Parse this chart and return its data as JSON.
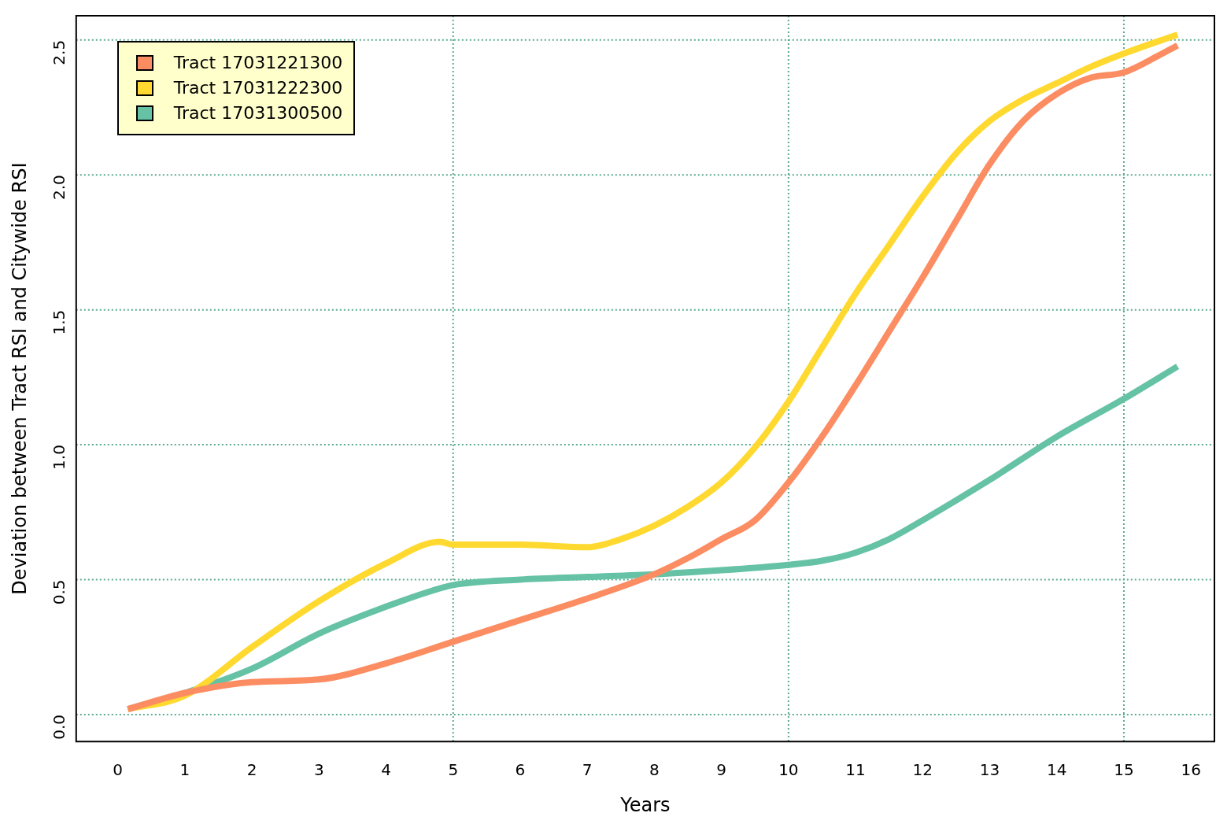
{
  "chart_data": {
    "type": "line",
    "xlabel": "Years",
    "ylabel": "Deviation between Tract RSI and Citywide RSI",
    "xlim": [
      -0.62,
      16.35
    ],
    "ylim": [
      -0.1,
      2.59
    ],
    "xticks": [
      0,
      1,
      2,
      3,
      4,
      5,
      6,
      7,
      8,
      9,
      10,
      11,
      12,
      13,
      14,
      15,
      16
    ],
    "yticks": [
      {
        "value": 0,
        "label": "0.0"
      },
      0.5,
      {
        "value": 1,
        "label": "1.0"
      },
      1.5,
      {
        "value": 2,
        "label": "2.0"
      },
      2.5
    ],
    "grid": true,
    "legend": "top left",
    "marker": "none",
    "line_style": "solid",
    "series": [
      {
        "name": "Tract 17031221300",
        "color": "#fc8d62",
        "x": [
          0.15,
          1,
          2,
          3,
          4,
          5,
          6,
          7,
          8,
          8.5,
          9,
          9.5,
          10,
          10.5,
          11,
          11.5,
          12,
          12.5,
          13,
          13.5,
          14,
          14.5,
          15,
          15.5,
          15.8
        ],
        "values": [
          0.02,
          0.08,
          0.12,
          0.13,
          0.19,
          0.27,
          0.35,
          0.43,
          0.52,
          0.58,
          0.65,
          0.72,
          0.86,
          1.03,
          1.22,
          1.42,
          1.62,
          1.83,
          2.04,
          2.2,
          2.3,
          2.36,
          2.38,
          2.44,
          2.48
        ]
      },
      {
        "name": "Tract 17031222300",
        "color": "#ffd92f",
        "x": [
          0.15,
          1,
          2,
          3,
          4,
          4.8,
          5,
          6,
          7,
          7.5,
          8,
          8.5,
          9,
          9.5,
          10,
          10.5,
          11,
          11.5,
          12,
          12.5,
          13,
          13.5,
          14,
          14.5,
          15,
          15.8
        ],
        "values": [
          0.02,
          0.07,
          0.25,
          0.42,
          0.56,
          0.64,
          0.63,
          0.63,
          0.62,
          0.65,
          0.7,
          0.77,
          0.86,
          0.99,
          1.16,
          1.36,
          1.56,
          1.74,
          1.92,
          2.08,
          2.2,
          2.28,
          2.34,
          2.4,
          2.45,
          2.52
        ]
      },
      {
        "name": "Tract 17031300500",
        "color": "#66c2a5",
        "x": [
          0.15,
          1,
          2,
          3,
          4,
          4.7,
          5,
          6,
          7,
          8,
          9,
          10,
          10.5,
          11,
          11.5,
          12,
          13,
          14,
          15,
          15.8
        ],
        "values": [
          0.02,
          0.08,
          0.17,
          0.3,
          0.4,
          0.46,
          0.48,
          0.5,
          0.51,
          0.52,
          0.535,
          0.555,
          0.57,
          0.6,
          0.65,
          0.72,
          0.87,
          1.03,
          1.17,
          1.29
        ]
      }
    ]
  }
}
